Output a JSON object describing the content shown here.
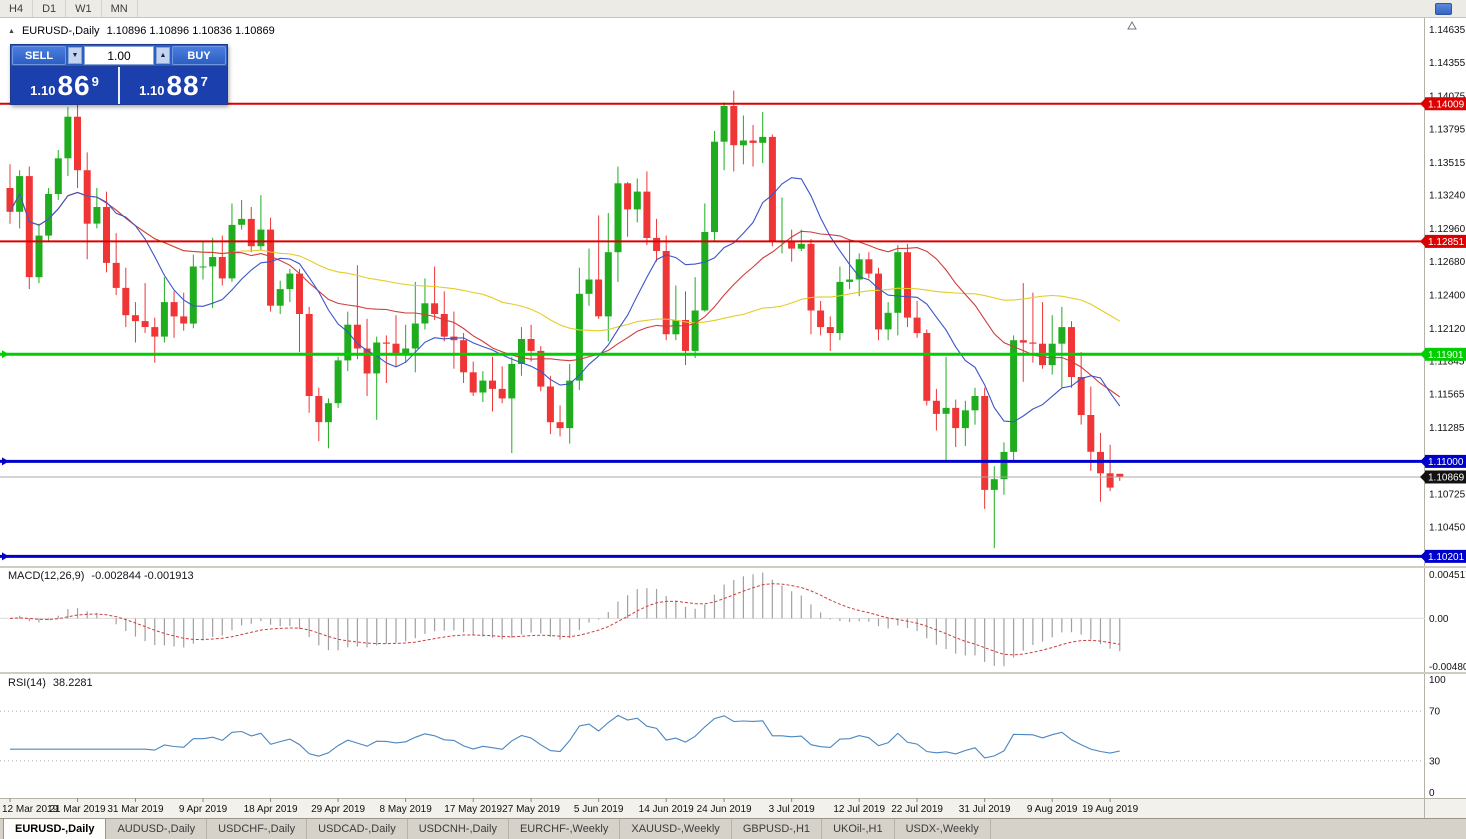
{
  "toolbar": {
    "timeframes": [
      "H4",
      "D1",
      "W1",
      "MN"
    ]
  },
  "chart_header": {
    "symbol_period": "EURUSD-,Daily",
    "ohlc": "1.10896 1.10896 1.10836 1.10869"
  },
  "trade_panel": {
    "sell_label": "SELL",
    "buy_label": "BUY",
    "volume": "1.00",
    "sell_price": {
      "prefix": "1.10",
      "big": "86",
      "sup": "9"
    },
    "buy_price": {
      "prefix": "1.10",
      "big": "88",
      "sup": "7"
    }
  },
  "colors": {
    "bull": "#1fad1f",
    "bear": "#ef3535",
    "macd_hist": "#a0a0a0",
    "macd_signal": "#cf3d3d",
    "rsi_line": "#4a86c0",
    "resistance_red": "#dd0000",
    "support_green": "#00ce00",
    "support_blue": "#0000cc",
    "current_price_bg": "#111111"
  },
  "chart_data": {
    "type": "candlestick",
    "symbol": "EURUSD-",
    "timeframe": "Daily",
    "price_range": [
      1.1012,
      1.1468
    ],
    "y_ticks": [
      "1.14635",
      "1.14355",
      "1.14075",
      "1.13795",
      "1.13515",
      "1.13240",
      "1.12960",
      "1.12680",
      "1.12400",
      "1.12120",
      "1.11845",
      "1.11565",
      "1.11285",
      "1.10725",
      "1.10450"
    ],
    "hlines": [
      {
        "price": 1.14009,
        "label": "1.14009",
        "color": "#dd0000",
        "width": 2
      },
      {
        "price": 1.12851,
        "label": "1.12851",
        "color": "#dd0000",
        "width": 2
      },
      {
        "price": 1.11901,
        "label": "1.11901",
        "color": "#00ce00",
        "width": 3
      },
      {
        "price": 1.11,
        "label": "1.11000",
        "color": "#0000cc",
        "width": 3
      },
      {
        "price": 1.10201,
        "label": "1.10201",
        "color": "#0000cc",
        "width": 3
      }
    ],
    "current_price": {
      "value": 1.10869,
      "label": "1.10869"
    },
    "moving_averages": [
      {
        "period": 10,
        "color": "#3c55c8"
      },
      {
        "period": 24,
        "color": "#cf3d3d"
      },
      {
        "period": 50,
        "color": "#e3cd28"
      }
    ],
    "x_labels": [
      {
        "bar": 0,
        "text": "12 Mar 2019"
      },
      {
        "bar": 7,
        "text": "21 Mar 2019"
      },
      {
        "bar": 13,
        "text": "31 Mar 2019"
      },
      {
        "bar": 20,
        "text": "9 Apr 2019"
      },
      {
        "bar": 27,
        "text": "18 Apr 2019"
      },
      {
        "bar": 34,
        "text": "29 Apr 2019"
      },
      {
        "bar": 41,
        "text": "8 May 2019"
      },
      {
        "bar": 48,
        "text": "17 May 2019"
      },
      {
        "bar": 54,
        "text": "27 May 2019"
      },
      {
        "bar": 61,
        "text": "5 Jun 2019"
      },
      {
        "bar": 68,
        "text": "14 Jun 2019"
      },
      {
        "bar": 74,
        "text": "24 Jun 2019"
      },
      {
        "bar": 81,
        "text": "3 Jul 2019"
      },
      {
        "bar": 88,
        "text": "12 Jul 2019"
      },
      {
        "bar": 94,
        "text": "22 Jul 2019"
      },
      {
        "bar": 101,
        "text": "31 Jul 2019"
      },
      {
        "bar": 108,
        "text": "9 Aug 2019"
      },
      {
        "bar": 114,
        "text": "19 Aug 2019"
      }
    ],
    "candles": [
      [
        1.133,
        1.135,
        1.13,
        1.131
      ],
      [
        1.131,
        1.1345,
        1.1296,
        1.134
      ],
      [
        1.134,
        1.1348,
        1.1245,
        1.1255
      ],
      [
        1.1255,
        1.13,
        1.125,
        1.129
      ],
      [
        1.129,
        1.133,
        1.1285,
        1.1325
      ],
      [
        1.1325,
        1.1362,
        1.132,
        1.1355
      ],
      [
        1.1355,
        1.1398,
        1.134,
        1.139
      ],
      [
        1.139,
        1.14,
        1.133,
        1.1345
      ],
      [
        1.1345,
        1.136,
        1.127,
        1.13
      ],
      [
        1.13,
        1.133,
        1.1296,
        1.1314
      ],
      [
        1.1314,
        1.1327,
        1.1259,
        1.1267
      ],
      [
        1.1267,
        1.1292,
        1.124,
        1.1246
      ],
      [
        1.1246,
        1.1263,
        1.1213,
        1.1223
      ],
      [
        1.1223,
        1.1234,
        1.12,
        1.1218
      ],
      [
        1.1218,
        1.125,
        1.1208,
        1.1213
      ],
      [
        1.1213,
        1.1221,
        1.1183,
        1.1205
      ],
      [
        1.1205,
        1.1255,
        1.12,
        1.1234
      ],
      [
        1.1234,
        1.1243,
        1.1204,
        1.1222
      ],
      [
        1.1222,
        1.1242,
        1.121,
        1.1216
      ],
      [
        1.1216,
        1.1274,
        1.1212,
        1.1264
      ],
      [
        1.1264,
        1.1285,
        1.1253,
        1.1264
      ],
      [
        1.1264,
        1.1288,
        1.1229,
        1.1272
      ],
      [
        1.1272,
        1.129,
        1.1248,
        1.1254
      ],
      [
        1.1254,
        1.1317,
        1.1251,
        1.1299
      ],
      [
        1.1299,
        1.132,
        1.1295,
        1.1304
      ],
      [
        1.1304,
        1.1314,
        1.1276,
        1.1281
      ],
      [
        1.1281,
        1.1324,
        1.1278,
        1.1295
      ],
      [
        1.1295,
        1.1305,
        1.1226,
        1.1231
      ],
      [
        1.1231,
        1.1252,
        1.1224,
        1.1245
      ],
      [
        1.1245,
        1.1262,
        1.1234,
        1.1258
      ],
      [
        1.1258,
        1.1262,
        1.1192,
        1.1224
      ],
      [
        1.1224,
        1.123,
        1.1141,
        1.1155
      ],
      [
        1.1155,
        1.1162,
        1.1117,
        1.1133
      ],
      [
        1.1133,
        1.1153,
        1.1111,
        1.1149
      ],
      [
        1.1149,
        1.1188,
        1.1145,
        1.1185
      ],
      [
        1.1185,
        1.1226,
        1.1176,
        1.1215
      ],
      [
        1.1215,
        1.1265,
        1.1186,
        1.1195
      ],
      [
        1.1195,
        1.122,
        1.1155,
        1.1174
      ],
      [
        1.1174,
        1.1205,
        1.1135,
        1.12
      ],
      [
        1.12,
        1.1206,
        1.1166,
        1.1199
      ],
      [
        1.1199,
        1.1223,
        1.118,
        1.119
      ],
      [
        1.119,
        1.1215,
        1.1183,
        1.1195
      ],
      [
        1.1195,
        1.1251,
        1.1175,
        1.1216
      ],
      [
        1.1216,
        1.1254,
        1.1211,
        1.1233
      ],
      [
        1.1233,
        1.1264,
        1.1219,
        1.1224
      ],
      [
        1.1224,
        1.1243,
        1.1201,
        1.1205
      ],
      [
        1.1205,
        1.1226,
        1.1178,
        1.1202
      ],
      [
        1.1202,
        1.1208,
        1.1166,
        1.1175
      ],
      [
        1.1175,
        1.1184,
        1.1155,
        1.1158
      ],
      [
        1.1158,
        1.1176,
        1.115,
        1.1168
      ],
      [
        1.1168,
        1.1188,
        1.1142,
        1.1161
      ],
      [
        1.1161,
        1.118,
        1.1149,
        1.1153
      ],
      [
        1.1153,
        1.1188,
        1.1107,
        1.1182
      ],
      [
        1.1182,
        1.1213,
        1.1172,
        1.1203
      ],
      [
        1.1203,
        1.1215,
        1.1184,
        1.1193
      ],
      [
        1.1193,
        1.1197,
        1.1159,
        1.1163
      ],
      [
        1.1163,
        1.1172,
        1.1123,
        1.1133
      ],
      [
        1.1133,
        1.1147,
        1.1121,
        1.1128
      ],
      [
        1.1128,
        1.1182,
        1.1115,
        1.1168
      ],
      [
        1.1168,
        1.1263,
        1.116,
        1.1241
      ],
      [
        1.1241,
        1.1279,
        1.1231,
        1.1253
      ],
      [
        1.1253,
        1.1307,
        1.122,
        1.1222
      ],
      [
        1.1222,
        1.1309,
        1.1201,
        1.1276
      ],
      [
        1.1276,
        1.1348,
        1.1251,
        1.1334
      ],
      [
        1.1334,
        1.1335,
        1.1289,
        1.1312
      ],
      [
        1.1312,
        1.1338,
        1.1301,
        1.1327
      ],
      [
        1.1327,
        1.1344,
        1.1282,
        1.1288
      ],
      [
        1.1288,
        1.1304,
        1.1268,
        1.1277
      ],
      [
        1.1277,
        1.129,
        1.1202,
        1.1207
      ],
      [
        1.1207,
        1.1248,
        1.1202,
        1.1219
      ],
      [
        1.1219,
        1.1243,
        1.1181,
        1.1193
      ],
      [
        1.1193,
        1.1255,
        1.1187,
        1.1227
      ],
      [
        1.1227,
        1.1317,
        1.1226,
        1.1293
      ],
      [
        1.1293,
        1.1378,
        1.1285,
        1.1369
      ],
      [
        1.1369,
        1.1402,
        1.1345,
        1.1399
      ],
      [
        1.1399,
        1.1412,
        1.1344,
        1.1366
      ],
      [
        1.1366,
        1.1391,
        1.135,
        1.137
      ],
      [
        1.137,
        1.1383,
        1.1348,
        1.1368
      ],
      [
        1.1368,
        1.1394,
        1.1351,
        1.1373
      ],
      [
        1.1373,
        1.1375,
        1.1281,
        1.1285
      ],
      [
        1.1285,
        1.1322,
        1.1275,
        1.1285
      ],
      [
        1.1285,
        1.1295,
        1.1268,
        1.1279
      ],
      [
        1.1279,
        1.1295,
        1.1277,
        1.1283
      ],
      [
        1.1283,
        1.1287,
        1.1207,
        1.1227
      ],
      [
        1.1227,
        1.1235,
        1.1206,
        1.1213
      ],
      [
        1.1213,
        1.1222,
        1.1193,
        1.1208
      ],
      [
        1.1208,
        1.1264,
        1.1202,
        1.1251
      ],
      [
        1.1251,
        1.1286,
        1.1245,
        1.1253
      ],
      [
        1.1253,
        1.1275,
        1.1239,
        1.127
      ],
      [
        1.127,
        1.1276,
        1.1254,
        1.1258
      ],
      [
        1.1258,
        1.1263,
        1.1202,
        1.1211
      ],
      [
        1.1211,
        1.1234,
        1.1202,
        1.1225
      ],
      [
        1.1225,
        1.1282,
        1.1206,
        1.1276
      ],
      [
        1.1276,
        1.1283,
        1.1213,
        1.1221
      ],
      [
        1.1221,
        1.1235,
        1.1204,
        1.1208
      ],
      [
        1.1208,
        1.1211,
        1.1147,
        1.1151
      ],
      [
        1.1151,
        1.1161,
        1.1126,
        1.114
      ],
      [
        1.114,
        1.1188,
        1.1101,
        1.1145
      ],
      [
        1.1145,
        1.1152,
        1.1112,
        1.1128
      ],
      [
        1.1128,
        1.1151,
        1.1113,
        1.1143
      ],
      [
        1.1143,
        1.1162,
        1.1131,
        1.1155
      ],
      [
        1.1155,
        1.1162,
        1.106,
        1.1076
      ],
      [
        1.1076,
        1.1096,
        1.1027,
        1.1085
      ],
      [
        1.1085,
        1.1116,
        1.1072,
        1.1108
      ],
      [
        1.1108,
        1.1206,
        1.1101,
        1.1202
      ],
      [
        1.1202,
        1.125,
        1.1167,
        1.12
      ],
      [
        1.12,
        1.1242,
        1.1183,
        1.1199
      ],
      [
        1.1199,
        1.1234,
        1.1178,
        1.1181
      ],
      [
        1.1181,
        1.1223,
        1.1173,
        1.1199
      ],
      [
        1.1199,
        1.123,
        1.1162,
        1.1213
      ],
      [
        1.1213,
        1.1218,
        1.1162,
        1.1171
      ],
      [
        1.1171,
        1.1192,
        1.1131,
        1.1139
      ],
      [
        1.1139,
        1.1163,
        1.1092,
        1.1108
      ],
      [
        1.1108,
        1.1124,
        1.1066,
        1.109
      ],
      [
        1.109,
        1.1114,
        1.1075,
        1.1078
      ],
      [
        1.10896,
        1.10896,
        1.10836,
        1.10869
      ]
    ]
  },
  "macd_panel": {
    "label": "MACD(12,26,9)",
    "values": "-0.002844 -0.001913",
    "scale": {
      "max": "0.004517",
      "mid": "0.00",
      "min": "-0.004806"
    }
  },
  "rsi_panel": {
    "label": "RSI(14)",
    "value": "38.2281",
    "levels": [
      "100",
      "70",
      "30",
      "0"
    ],
    "dotted_levels": [
      70,
      30
    ]
  },
  "tabs": [
    "EURUSD-,Daily",
    "AUDUSD-,Daily",
    "USDCHF-,Daily",
    "USDCAD-,Daily",
    "USDCNH-,Daily",
    "EURCHF-,Weekly",
    "XAUUSD-,Weekly",
    "GBPUSD-,H1",
    "UKOil-,H1",
    "USDX-,Weekly"
  ]
}
